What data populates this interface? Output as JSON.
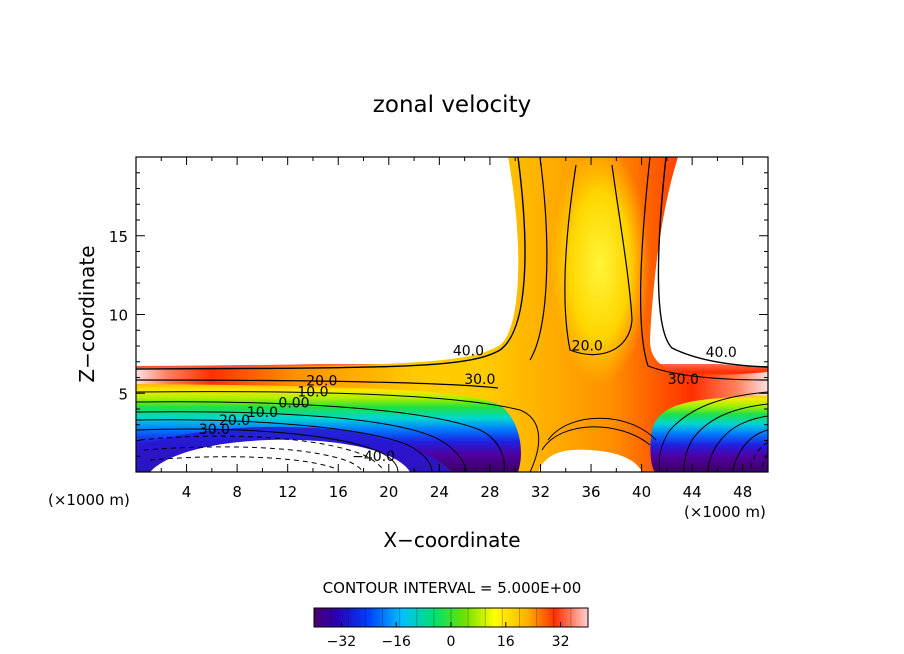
{
  "chart_data": {
    "type": "contour",
    "title": "zonal velocity",
    "xlabel": "X−coordinate",
    "ylabel": "Z−coordinate",
    "x_unit_left": "(×1000 m)",
    "x_unit_right": "(×1000 m)",
    "xlim": [
      0,
      50
    ],
    "ylim": [
      0,
      20
    ],
    "x_ticks": [
      4,
      8,
      12,
      16,
      20,
      24,
      28,
      32,
      36,
      40,
      44,
      48
    ],
    "x_tick_labels": [
      "4",
      "8",
      "12",
      "16",
      "20",
      "24",
      "28",
      "32",
      "36",
      "40",
      "44",
      "48"
    ],
    "y_ticks": [
      5,
      10,
      15
    ],
    "y_tick_labels": [
      "5",
      "10",
      "15"
    ],
    "contour_interval_text": "CONTOUR INTERVAL = 5.000E+00",
    "contour_interval": 5,
    "colorbar": {
      "range": [
        -40,
        40
      ],
      "ticks": [
        -32,
        -16,
        0,
        16,
        32
      ],
      "tick_labels": [
        "−32",
        "−16",
        "0",
        "16",
        "32"
      ]
    },
    "contour_labels": [
      {
        "text": "40.0",
        "x": 26.3,
        "z": 7.4
      },
      {
        "text": "20.0",
        "x": 14.7,
        "z": 5.5
      },
      {
        "text": "10.0",
        "x": 14.0,
        "z": 4.8
      },
      {
        "text": "0.00",
        "x": 12.5,
        "z": 4.1
      },
      {
        "text": "10.0",
        "x": 10.0,
        "z": 3.5
      },
      {
        "text": "20.0",
        "x": 7.8,
        "z": 3.0
      },
      {
        "text": "30.0",
        "x": 6.2,
        "z": 2.4
      },
      {
        "text": "−40.0",
        "x": 18.8,
        "z": 0.7
      },
      {
        "text": "30.0",
        "x": 27.2,
        "z": 5.6
      },
      {
        "text": "20.0",
        "x": 35.7,
        "z": 7.7
      },
      {
        "text": "30.0",
        "x": 43.3,
        "z": 5.6
      },
      {
        "text": "40.0",
        "x": 46.3,
        "z": 7.3
      }
    ]
  }
}
